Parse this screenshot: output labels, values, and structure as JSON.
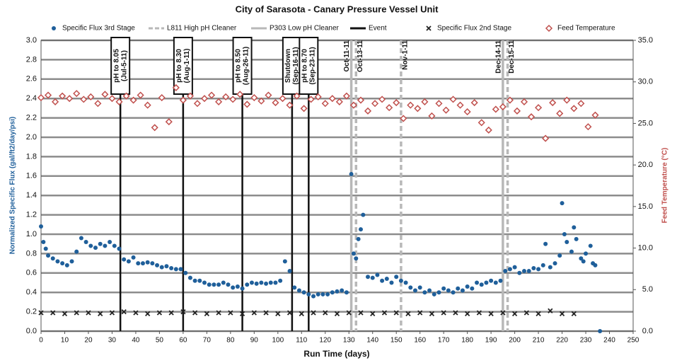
{
  "chart_data": {
    "type": "scatter",
    "title": "City of Sarasota  - Canary Pressure Vessel Unit",
    "x_label": "Run Time (days)",
    "y_label": "Normalized Specific Flux (gal/ft2/day/psi)",
    "y2_label": "Feed Temperature (°C)",
    "xlim": [
      0,
      250
    ],
    "xticks": [
      0,
      10,
      20,
      30,
      40,
      50,
      60,
      70,
      80,
      90,
      100,
      110,
      120,
      130,
      140,
      150,
      160,
      170,
      180,
      190,
      200,
      210,
      220,
      230,
      240,
      250
    ],
    "ylim": [
      0,
      3
    ],
    "yticks": [
      {
        "value": 0,
        "label": "0.0"
      },
      0.2,
      0.4,
      0.6,
      0.8,
      {
        "value": 1,
        "label": "1.0"
      },
      1.2,
      1.4,
      1.6,
      1.8,
      {
        "value": 2,
        "label": "2.0"
      },
      2.2,
      2.4,
      2.6,
      2.8,
      {
        "value": 3,
        "label": "3.0"
      }
    ],
    "y2lim": [
      0,
      35
    ],
    "y2ticks": [
      {
        "value": 0,
        "label": "0.0"
      },
      {
        "value": 5,
        "label": "5.0"
      },
      {
        "value": 10,
        "label": "10.0"
      },
      {
        "value": 15,
        "label": "15.0"
      },
      {
        "value": 20,
        "label": "20.0"
      },
      {
        "value": 25,
        "label": "25.0"
      },
      {
        "value": 30,
        "label": "30.0"
      },
      {
        "value": 35,
        "label": "35.0"
      }
    ],
    "grid": true,
    "series": [
      {
        "name": "Specific Flux 3rd Stage",
        "color": "#1f5f9a",
        "marker": "circle",
        "x": [
          0,
          1,
          2,
          3,
          5,
          7,
          9,
          11,
          13,
          15,
          17,
          19,
          21,
          23,
          25,
          27,
          29,
          31,
          33,
          35,
          37,
          39,
          41,
          43,
          45,
          47,
          49,
          51,
          53,
          55,
          57,
          59,
          61,
          63,
          65,
          67,
          69,
          71,
          73,
          75,
          77,
          79,
          81,
          83,
          85,
          87,
          89,
          91,
          93,
          95,
          97,
          99,
          101,
          103,
          105,
          107,
          109,
          111,
          113,
          115,
          117,
          119,
          121,
          123,
          125,
          127,
          129,
          131,
          132,
          133,
          134,
          135,
          136,
          138,
          140,
          142,
          144,
          146,
          148,
          150,
          152,
          154,
          156,
          158,
          160,
          162,
          164,
          166,
          168,
          170,
          172,
          174,
          176,
          178,
          180,
          182,
          184,
          186,
          188,
          190,
          192,
          194,
          196,
          198,
          200,
          202,
          204,
          206,
          208,
          210,
          212,
          213,
          215,
          217,
          219,
          220,
          221,
          222,
          224,
          225,
          226,
          228,
          229,
          230,
          232,
          233,
          234,
          236
        ],
        "values": [
          1.08,
          0.92,
          0.85,
          0.78,
          0.75,
          0.72,
          0.7,
          0.68,
          0.72,
          0.82,
          0.96,
          0.92,
          0.88,
          0.86,
          0.9,
          0.88,
          0.92,
          0.88,
          0.85,
          0.74,
          0.72,
          0.76,
          0.7,
          0.7,
          0.71,
          0.7,
          0.68,
          0.66,
          0.67,
          0.65,
          0.64,
          0.64,
          0.6,
          0.55,
          0.52,
          0.52,
          0.5,
          0.48,
          0.48,
          0.48,
          0.5,
          0.48,
          0.45,
          0.46,
          0.44,
          0.48,
          0.5,
          0.49,
          0.5,
          0.49,
          0.5,
          0.5,
          0.52,
          0.72,
          0.62,
          0.45,
          0.42,
          0.4,
          0.38,
          0.36,
          0.38,
          0.38,
          0.38,
          0.4,
          0.41,
          0.42,
          0.4,
          1.62,
          0.8,
          0.75,
          0.95,
          1.05,
          1.2,
          0.56,
          0.55,
          0.58,
          0.52,
          0.54,
          0.5,
          0.56,
          0.52,
          0.5,
          0.45,
          0.42,
          0.45,
          0.4,
          0.42,
          0.38,
          0.4,
          0.44,
          0.42,
          0.4,
          0.44,
          0.42,
          0.46,
          0.44,
          0.5,
          0.48,
          0.5,
          0.52,
          0.5,
          0.52,
          0.62,
          0.64,
          0.66,
          0.6,
          0.62,
          0.62,
          0.65,
          0.64,
          0.68,
          0.9,
          0.66,
          0.7,
          0.78,
          1.32,
          1.0,
          0.92,
          0.82,
          1.07,
          0.95,
          0.75,
          0.72,
          0.8,
          0.88,
          0.7,
          0.68,
          0.0
        ]
      },
      {
        "name": "Specific Flux 2nd Stage",
        "color": "#222222",
        "marker": "x",
        "x": [
          0,
          5,
          10,
          15,
          20,
          25,
          30,
          35,
          40,
          45,
          50,
          55,
          60,
          65,
          70,
          75,
          80,
          85,
          90,
          95,
          100,
          105,
          110,
          115,
          120,
          125,
          130,
          135,
          140,
          145,
          150,
          155,
          160,
          165,
          170,
          175,
          180,
          185,
          190,
          195,
          200,
          205,
          210,
          215,
          220,
          225
        ],
        "values": [
          0.19,
          0.19,
          0.18,
          0.19,
          0.19,
          0.18,
          0.19,
          0.2,
          0.19,
          0.18,
          0.19,
          0.19,
          0.2,
          0.19,
          0.18,
          0.19,
          0.19,
          0.18,
          0.19,
          0.19,
          0.18,
          0.19,
          0.18,
          0.19,
          0.19,
          0.18,
          0.19,
          0.19,
          0.18,
          0.19,
          0.19,
          0.18,
          0.19,
          0.18,
          0.19,
          0.19,
          0.18,
          0.19,
          0.18,
          0.19,
          0.18,
          0.19,
          0.18,
          0.21,
          0.18,
          0.18
        ]
      },
      {
        "name": "Feed Temperature",
        "color": "#c0504d",
        "marker": "diamond",
        "axis": "y2",
        "x": [
          0,
          3,
          6,
          9,
          12,
          15,
          18,
          21,
          24,
          27,
          30,
          33,
          36,
          39,
          42,
          45,
          48,
          51,
          54,
          57,
          60,
          63,
          66,
          69,
          72,
          75,
          78,
          81,
          84,
          87,
          90,
          93,
          96,
          99,
          102,
          105,
          108,
          111,
          114,
          117,
          120,
          123,
          126,
          129,
          132,
          135,
          138,
          141,
          144,
          147,
          150,
          153,
          156,
          159,
          162,
          165,
          168,
          171,
          174,
          177,
          180,
          183,
          186,
          189,
          192,
          195,
          198,
          201,
          204,
          207,
          210,
          213,
          216,
          219,
          222,
          225,
          228,
          231,
          234
        ],
        "values": [
          28.1,
          28.4,
          27.6,
          28.3,
          28.0,
          28.6,
          27.9,
          28.2,
          27.4,
          28.5,
          28.0,
          27.6,
          28.3,
          27.8,
          28.4,
          27.2,
          24.5,
          28.1,
          25.2,
          29.3,
          27.8,
          28.3,
          27.4,
          28.0,
          28.4,
          27.6,
          28.2,
          27.9,
          28.5,
          27.3,
          28.1,
          27.7,
          28.4,
          27.5,
          28.0,
          27.2,
          28.3,
          26.8,
          27.9,
          28.2,
          27.4,
          28.0,
          27.6,
          28.3,
          27.2,
          27.8,
          26.5,
          27.4,
          27.9,
          26.9,
          27.5,
          25.6,
          27.2,
          26.8,
          27.6,
          25.9,
          27.4,
          26.6,
          27.9,
          27.2,
          26.4,
          27.5,
          25.1,
          24.2,
          26.7,
          27.0,
          27.8,
          26.5,
          27.6,
          25.8,
          26.9,
          23.2,
          27.5,
          26.2,
          27.8,
          26.8,
          27.4,
          24.6,
          26.0
        ]
      }
    ],
    "reference_lines": [
      {
        "name": "L811 High pH Cleaner",
        "color": "#b8b8b8",
        "dashed": true,
        "marks": [
          {
            "x": 133,
            "label": "Oct-13-11"
          },
          {
            "x": 152,
            "label": "Nov-1-11"
          },
          {
            "x": 197,
            "label": "Dec-15-11"
          }
        ]
      },
      {
        "name": "P303 Low pH Cleaner",
        "color": "#b8b8b8",
        "dashed": false,
        "marks": [
          {
            "x": 131,
            "label": "Oct-11-11"
          },
          {
            "x": 195,
            "label": "Dec-14-11"
          }
        ]
      },
      {
        "name": "Event",
        "color": "#111111",
        "dashed": false,
        "boxed": true,
        "marks": [
          {
            "x": 33.5,
            "label": [
              "pH to 8.05",
              "(Jul-5-11)"
            ]
          },
          {
            "x": 60,
            "label": [
              "pH to 8.30",
              "(Aug-1-11)"
            ]
          },
          {
            "x": 85,
            "label": [
              "pH to 8.50",
              "(Aug-26-11)"
            ]
          },
          {
            "x": 106,
            "label": [
              "Shutdown",
              "(Sep-16-11)"
            ]
          },
          {
            "x": 113,
            "label": [
              "pH to 8.70",
              "(Sep-23-11)"
            ]
          }
        ]
      }
    ]
  }
}
